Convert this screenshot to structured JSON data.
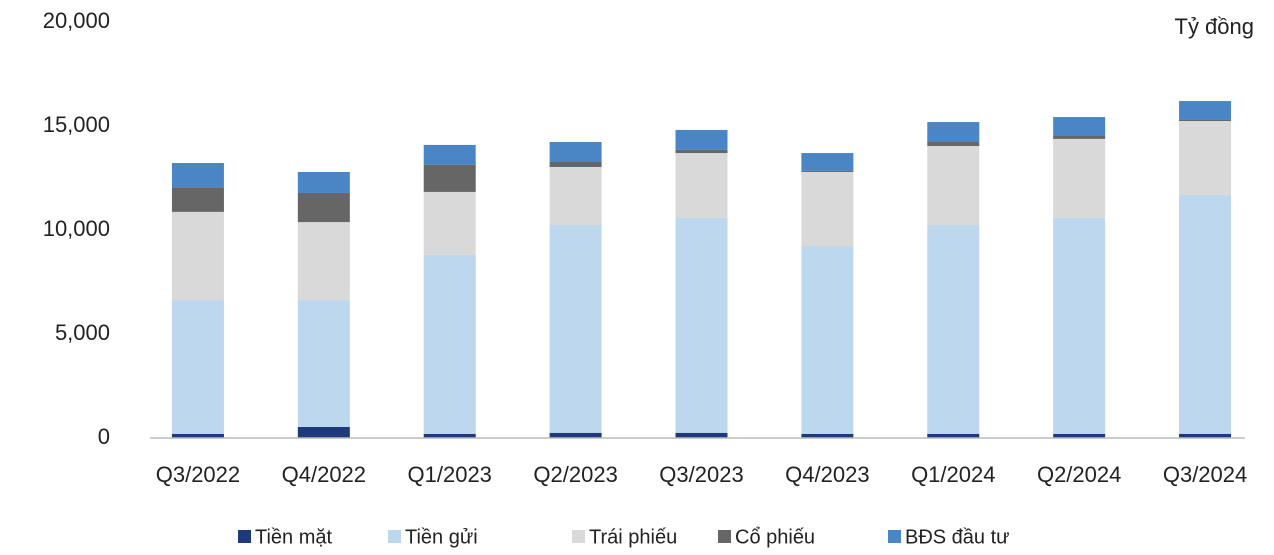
{
  "chart_data": {
    "type": "stacked_bar",
    "unit_label": "Tỷ đồng",
    "categories": [
      "Q3/2022",
      "Q4/2022",
      "Q1/2023",
      "Q2/2023",
      "Q3/2023",
      "Q4/2023",
      "Q1/2024",
      "Q2/2024",
      "Q3/2024"
    ],
    "series": [
      {
        "name": "Tiền mặt",
        "color": "#1f3a7a",
        "values": [
          200,
          530,
          200,
          250,
          250,
          200,
          200,
          200,
          200
        ]
      },
      {
        "name": "Tiền gửi",
        "color": "#bdd7ee",
        "values": [
          6430,
          6100,
          8600,
          9990,
          10330,
          9030,
          10040,
          10380,
          11480
        ]
      },
      {
        "name": "Trái phiếu",
        "color": "#d9d9d9",
        "values": [
          4240,
          3750,
          3030,
          2790,
          3120,
          3560,
          3800,
          3800,
          3560
        ]
      },
      {
        "name": "Cổ phiếu",
        "color": "#666666",
        "values": [
          1150,
          1400,
          1300,
          240,
          150,
          50,
          190,
          140,
          50
        ]
      },
      {
        "name": "BĐS đầu tư",
        "color": "#4a86c5",
        "values": [
          1200,
          1010,
          960,
          960,
          960,
          860,
          960,
          910,
          910
        ]
      }
    ],
    "ylim": [
      0,
      20000
    ],
    "yticks": [
      0,
      {
        "value": 5000,
        "label": "5,000"
      },
      {
        "value": 10000,
        "label": "10,000"
      },
      {
        "value": 15000,
        "label": "15,000"
      },
      {
        "value": 20000,
        "label": "20,000"
      }
    ],
    "grid": false,
    "legend": "bottom"
  }
}
